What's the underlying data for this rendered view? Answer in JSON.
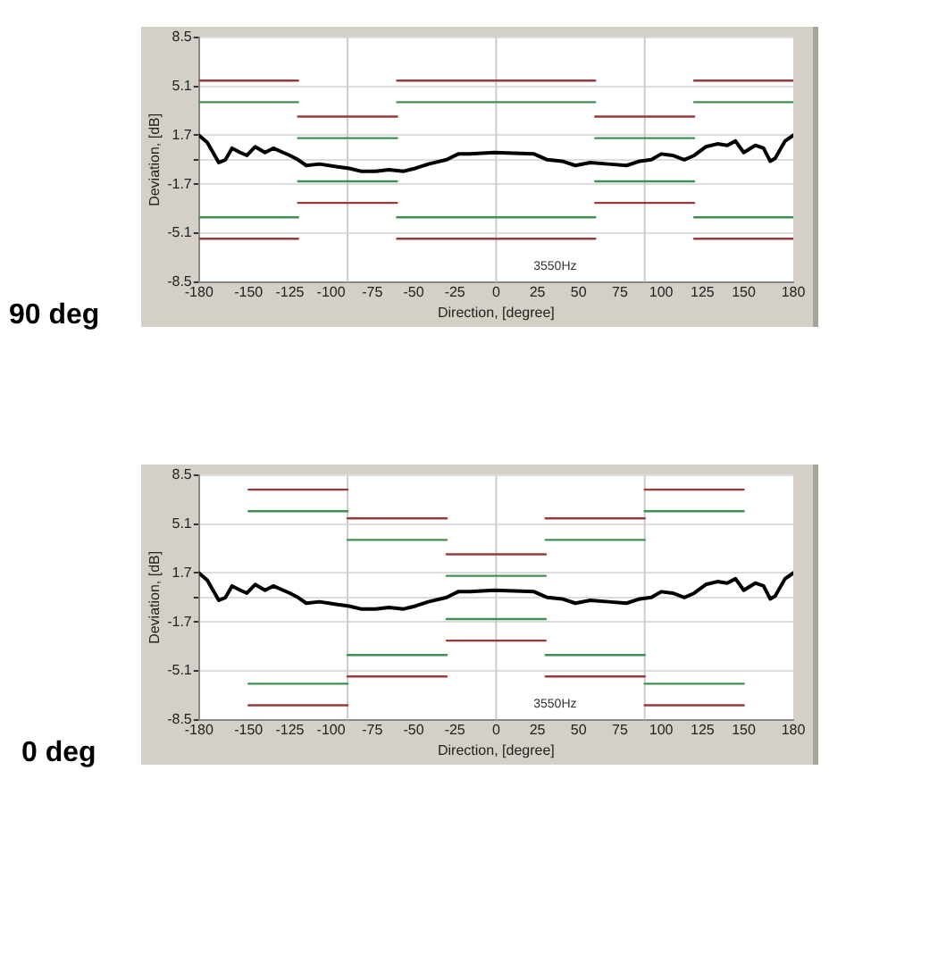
{
  "chart_data": [
    {
      "type": "line",
      "title": "90 deg",
      "xlabel": "Direction, [degree]",
      "ylabel": "Deviation, [dB]",
      "annotations": [
        "3550Hz"
      ],
      "xlim": [
        -180,
        180
      ],
      "xticks": [
        -180,
        -150,
        -125,
        -100,
        -75,
        -50,
        -25,
        0,
        25,
        50,
        75,
        100,
        125,
        150,
        180
      ],
      "ylim": [
        -8.5,
        8.5
      ],
      "yticks": [
        -8.5,
        -5.1,
        -1.7,
        {
          "value": 0,
          "label": null
        },
        1.7,
        5.1,
        8.5
      ],
      "grid": "y",
      "legend": false,
      "marker": "none",
      "ref_lines": [
        {
          "axis": "x",
          "value": -90,
          "color": "#cccccc"
        },
        {
          "axis": "x",
          "value": 0,
          "color": "#cccccc"
        },
        {
          "axis": "x",
          "value": 90,
          "color": "#cccccc"
        }
      ],
      "series": [
        {
          "color": "#9b3a3a",
          "x": [
            -180,
            -120
          ],
          "values": [
            5.5,
            5.5
          ]
        },
        {
          "color": "#9b3a3a",
          "x": [
            -120,
            -60
          ],
          "values": [
            3,
            3
          ]
        },
        {
          "color": "#9b3a3a",
          "x": [
            -60,
            60
          ],
          "values": [
            5.5,
            5.5
          ]
        },
        {
          "color": "#9b3a3a",
          "x": [
            60,
            120
          ],
          "values": [
            3,
            3
          ]
        },
        {
          "color": "#9b3a3a",
          "x": [
            120,
            180
          ],
          "values": [
            5.5,
            5.5
          ]
        },
        {
          "color": "#3f9153",
          "x": [
            -180,
            -120
          ],
          "values": [
            4,
            4
          ]
        },
        {
          "color": "#3f9153",
          "x": [
            -120,
            -60
          ],
          "values": [
            1.5,
            1.5
          ]
        },
        {
          "color": "#3f9153",
          "x": [
            -60,
            60
          ],
          "values": [
            4,
            4
          ]
        },
        {
          "color": "#3f9153",
          "x": [
            60,
            120
          ],
          "values": [
            1.5,
            1.5
          ]
        },
        {
          "color": "#3f9153",
          "x": [
            120,
            180
          ],
          "values": [
            4,
            4
          ]
        },
        {
          "color": "#3f9153",
          "x": [
            -180,
            -120
          ],
          "values": [
            -4,
            -4
          ]
        },
        {
          "color": "#3f9153",
          "x": [
            -120,
            -60
          ],
          "values": [
            -1.5,
            -1.5
          ]
        },
        {
          "color": "#3f9153",
          "x": [
            -60,
            60
          ],
          "values": [
            -4,
            -4
          ]
        },
        {
          "color": "#3f9153",
          "x": [
            60,
            120
          ],
          "values": [
            -1.5,
            -1.5
          ]
        },
        {
          "color": "#3f9153",
          "x": [
            120,
            180
          ],
          "values": [
            -4,
            -4
          ]
        },
        {
          "color": "#9b3a3a",
          "x": [
            -180,
            -120
          ],
          "values": [
            -5.5,
            -5.5
          ]
        },
        {
          "color": "#9b3a3a",
          "x": [
            -120,
            -60
          ],
          "values": [
            -3,
            -3
          ]
        },
        {
          "color": "#9b3a3a",
          "x": [
            -60,
            60
          ],
          "values": [
            -5.5,
            -5.5
          ]
        },
        {
          "color": "#9b3a3a",
          "x": [
            60,
            120
          ],
          "values": [
            -3,
            -3
          ]
        },
        {
          "color": "#9b3a3a",
          "x": [
            120,
            180
          ],
          "values": [
            -5.5,
            -5.5
          ]
        },
        {
          "color": "#000000",
          "x": [
            -180,
            -175,
            -168,
            -164,
            -160,
            -155,
            -151,
            -146,
            -140,
            -135,
            -129,
            -125,
            -120,
            -115,
            -107,
            -96,
            -89,
            -82,
            -73,
            -65,
            -56,
            -49,
            -41,
            -30,
            -23,
            -16,
            -1,
            23,
            31,
            40,
            48,
            57,
            68,
            79,
            87,
            94,
            100,
            107,
            114,
            120,
            127,
            134,
            140,
            145,
            150,
            157,
            162,
            166,
            169,
            175,
            180
          ],
          "values": [
            1.7,
            1.2,
            -0.2,
            0,
            0.8,
            0.5,
            0.3,
            0.9,
            0.5,
            0.8,
            0.5,
            0.3,
            0,
            -0.4,
            -0.3,
            -0.5,
            -0.6,
            -0.8,
            -0.8,
            -0.7,
            -0.8,
            -0.6,
            -0.3,
            0,
            0.4,
            0.4,
            0.5,
            0.4,
            0,
            -0.1,
            -0.4,
            -0.2,
            -0.3,
            -0.4,
            -0.1,
            0,
            0.4,
            0.3,
            0,
            0.3,
            0.9,
            1.1,
            1,
            1.3,
            0.5,
            1,
            0.8,
            -0.1,
            0.1,
            1.3,
            1.7
          ]
        }
      ]
    },
    {
      "type": "line",
      "title": "0 deg",
      "xlabel": "Direction, [degree]",
      "ylabel": "Deviation, [dB]",
      "annotations": [
        "3550Hz"
      ],
      "xlim": [
        -180,
        180
      ],
      "xticks": [
        -180,
        -150,
        -125,
        -100,
        -75,
        -50,
        -25,
        0,
        25,
        50,
        75,
        100,
        125,
        150,
        180
      ],
      "ylim": [
        -8.5,
        8.5
      ],
      "yticks": [
        -8.5,
        -5.1,
        -1.7,
        {
          "value": 0,
          "label": null
        },
        1.7,
        5.1,
        8.5
      ],
      "grid": "y",
      "legend": false,
      "marker": "none",
      "ref_lines": [
        {
          "axis": "x",
          "value": -90,
          "color": "#cccccc"
        },
        {
          "axis": "x",
          "value": 0,
          "color": "#cccccc"
        },
        {
          "axis": "x",
          "value": 90,
          "color": "#cccccc"
        }
      ],
      "series": [
        {
          "color": "#9b3a3a",
          "x": [
            -150,
            -90
          ],
          "values": [
            7.5,
            7.5
          ]
        },
        {
          "color": "#9b3a3a",
          "x": [
            -90,
            -30
          ],
          "values": [
            5.5,
            5.5
          ]
        },
        {
          "color": "#9b3a3a",
          "x": [
            -30,
            30
          ],
          "values": [
            3,
            3
          ]
        },
        {
          "color": "#9b3a3a",
          "x": [
            30,
            90
          ],
          "values": [
            5.5,
            5.5
          ]
        },
        {
          "color": "#9b3a3a",
          "x": [
            90,
            150
          ],
          "values": [
            7.5,
            7.5
          ]
        },
        {
          "color": "#3f9153",
          "x": [
            -150,
            -90
          ],
          "values": [
            6,
            6
          ]
        },
        {
          "color": "#3f9153",
          "x": [
            -90,
            -30
          ],
          "values": [
            4,
            4
          ]
        },
        {
          "color": "#3f9153",
          "x": [
            -30,
            30
          ],
          "values": [
            1.5,
            1.5
          ]
        },
        {
          "color": "#3f9153",
          "x": [
            30,
            90
          ],
          "values": [
            4,
            4
          ]
        },
        {
          "color": "#3f9153",
          "x": [
            90,
            150
          ],
          "values": [
            6,
            6
          ]
        },
        {
          "color": "#3f9153",
          "x": [
            -150,
            -90
          ],
          "values": [
            -6,
            -6
          ]
        },
        {
          "color": "#3f9153",
          "x": [
            -90,
            -30
          ],
          "values": [
            -4,
            -4
          ]
        },
        {
          "color": "#3f9153",
          "x": [
            -30,
            30
          ],
          "values": [
            -1.5,
            -1.5
          ]
        },
        {
          "color": "#3f9153",
          "x": [
            30,
            90
          ],
          "values": [
            -4,
            -4
          ]
        },
        {
          "color": "#3f9153",
          "x": [
            90,
            150
          ],
          "values": [
            -6,
            -6
          ]
        },
        {
          "color": "#9b3a3a",
          "x": [
            -150,
            -90
          ],
          "values": [
            -7.5,
            -7.5
          ]
        },
        {
          "color": "#9b3a3a",
          "x": [
            -90,
            -30
          ],
          "values": [
            -5.5,
            -5.5
          ]
        },
        {
          "color": "#9b3a3a",
          "x": [
            -30,
            30
          ],
          "values": [
            -3,
            -3
          ]
        },
        {
          "color": "#9b3a3a",
          "x": [
            30,
            90
          ],
          "values": [
            -5.5,
            -5.5
          ]
        },
        {
          "color": "#9b3a3a",
          "x": [
            90,
            150
          ],
          "values": [
            -7.5,
            -7.5
          ]
        },
        {
          "color": "#000000",
          "x": [
            -180,
            -175,
            -168,
            -164,
            -160,
            -155,
            -151,
            -146,
            -140,
            -135,
            -129,
            -125,
            -120,
            -115,
            -107,
            -96,
            -89,
            -82,
            -73,
            -65,
            -56,
            -49,
            -41,
            -30,
            -23,
            -16,
            -1,
            23,
            31,
            40,
            48,
            57,
            68,
            79,
            87,
            94,
            100,
            107,
            114,
            120,
            127,
            134,
            140,
            145,
            150,
            157,
            162,
            166,
            169,
            175,
            180
          ],
          "values": [
            1.7,
            1.2,
            -0.2,
            0,
            0.8,
            0.5,
            0.3,
            0.9,
            0.5,
            0.8,
            0.5,
            0.3,
            0,
            -0.4,
            -0.3,
            -0.5,
            -0.6,
            -0.8,
            -0.8,
            -0.7,
            -0.8,
            -0.6,
            -0.3,
            0,
            0.4,
            0.4,
            0.5,
            0.4,
            0,
            -0.1,
            -0.4,
            -0.2,
            -0.3,
            -0.4,
            -0.1,
            0,
            0.4,
            0.3,
            0,
            0.3,
            0.9,
            1.1,
            1,
            1.3,
            0.5,
            1,
            0.8,
            -0.1,
            0.1,
            1.3,
            1.7
          ]
        }
      ]
    }
  ]
}
